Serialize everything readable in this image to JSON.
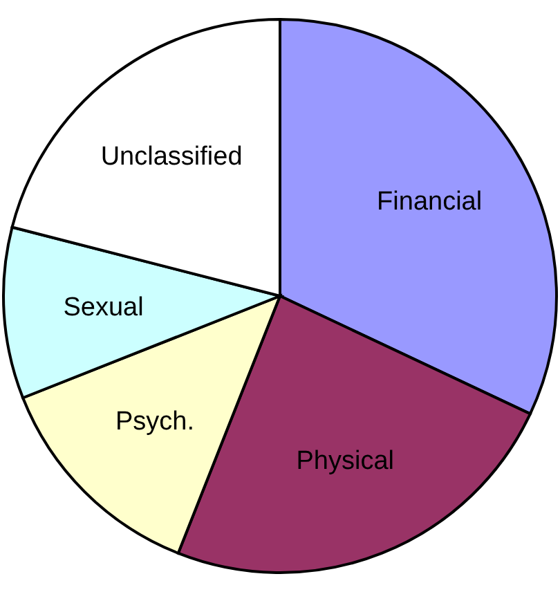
{
  "chart_data": {
    "type": "pie",
    "categories": [
      "Financial",
      "Physical",
      "Psych.",
      "Sexual",
      "Unclassified"
    ],
    "values": [
      32,
      24,
      13,
      10,
      21
    ],
    "colors": [
      "#9999ff",
      "#993366",
      "#ffffcc",
      "#ccffff",
      "#ffffff"
    ],
    "legend": false
  }
}
